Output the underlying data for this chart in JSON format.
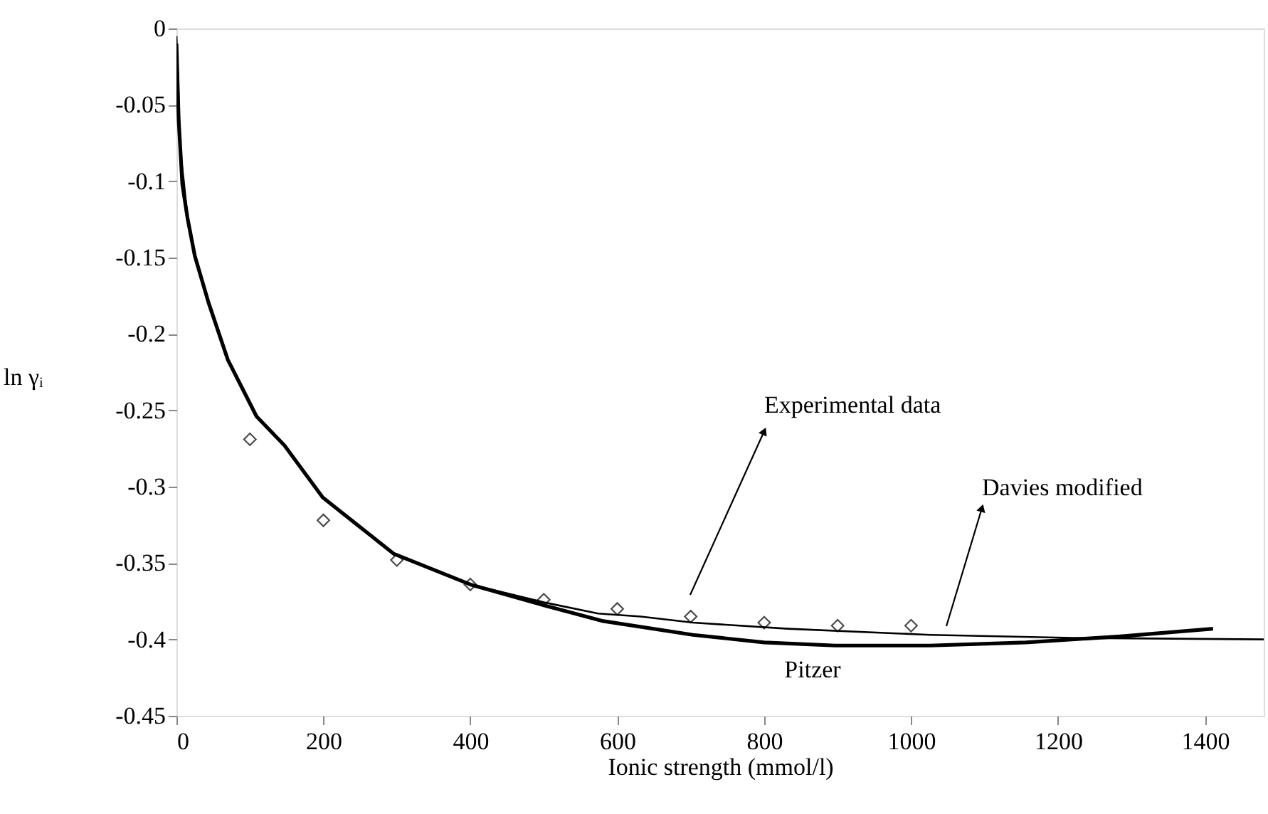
{
  "chart_data": {
    "type": "line",
    "xlabel": "Ionic strength (mmol/l)",
    "ylabel": "ln γᵢ",
    "xlim": [
      0,
      1480
    ],
    "ylim": [
      -0.45,
      0
    ],
    "xticks": [
      0,
      200,
      400,
      600,
      800,
      1000,
      1200,
      1400
    ],
    "yticks": [
      -0.45,
      -0.4,
      -0.35,
      -0.3,
      -0.25,
      -0.2,
      -0.15,
      -0.1,
      -0.05,
      0
    ],
    "grid": false,
    "series": [
      {
        "type": "scatter",
        "marker": "diamond",
        "color": "#000000",
        "x": [
          100,
          200,
          300,
          400,
          500,
          600,
          700,
          800,
          900,
          1000
        ],
        "values": [
          -0.269,
          -0.322,
          -0.348,
          -0.364,
          -0.374,
          -0.38,
          -0.385,
          -0.389,
          -0.391,
          -0.391
        ]
      },
      {
        "color": "#000000",
        "x": [
          0,
          2,
          5,
          10,
          15,
          25,
          44,
          70,
          109,
          147,
          199,
          296,
          400,
          503,
          574,
          632,
          703,
          832,
          1026,
          1220,
          1480
        ],
        "values": [
          -0.005,
          -0.03,
          -0.08,
          -0.1,
          -0.124,
          -0.149,
          -0.18,
          -0.217,
          -0.254,
          -0.273,
          -0.307,
          -0.344,
          -0.364,
          -0.376,
          -0.383,
          -0.385,
          -0.389,
          -0.393,
          -0.397,
          -0.399,
          -0.4
        ]
      },
      {
        "color": "#000000",
        "x": [
          0,
          3,
          8,
          15,
          25,
          44,
          70,
          109,
          147,
          199,
          296,
          400,
          503,
          581,
          703,
          800,
          897,
          1026,
          1156,
          1285,
          1411
        ],
        "values": [
          -0.01,
          -0.06,
          -0.102,
          -0.124,
          -0.149,
          -0.18,
          -0.217,
          -0.254,
          -0.273,
          -0.307,
          -0.344,
          -0.364,
          -0.378,
          -0.388,
          -0.397,
          -0.402,
          -0.404,
          -0.404,
          -0.402,
          -0.398,
          -0.393
        ]
      }
    ],
    "annotations": [
      "Experimental data",
      "Davies modified",
      "Pitzer"
    ]
  }
}
